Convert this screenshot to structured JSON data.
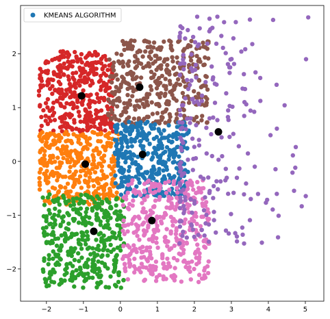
{
  "chart_data": {
    "type": "scatter",
    "title": "",
    "xlabel": "",
    "ylabel": "",
    "xlim": [
      -2.7,
      5.5
    ],
    "ylim": [
      -2.6,
      2.9
    ],
    "xticks": [
      -2,
      -1,
      0,
      1,
      2,
      3,
      4,
      5
    ],
    "yticks": [
      -2,
      -1,
      0,
      1,
      2
    ],
    "grid": false,
    "legend": {
      "placement": "top-left",
      "label": "KMEANS ALGORITHM",
      "color": "#1f77b4"
    },
    "clusters": [
      {
        "color": "#d62728",
        "centroid": [
          -1.05,
          1.22
        ],
        "x_range": [
          -2.2,
          -0.2
        ],
        "y_range": [
          0.55,
          2.05
        ]
      },
      {
        "color": "#8c564b",
        "centroid": [
          0.52,
          1.38
        ],
        "x_range": [
          -0.35,
          2.4
        ],
        "y_range": [
          0.7,
          2.25
        ]
      },
      {
        "color": "#ff7f0e",
        "centroid": [
          -0.95,
          -0.05
        ],
        "x_range": [
          -2.2,
          -0.05
        ],
        "y_range": [
          -0.8,
          0.55
        ]
      },
      {
        "color": "#1f77b4",
        "centroid": [
          0.6,
          0.13
        ],
        "x_range": [
          -0.15,
          1.85
        ],
        "y_range": [
          -0.65,
          0.75
        ]
      },
      {
        "color": "#2ca02c",
        "centroid": [
          -0.72,
          -1.3
        ],
        "x_range": [
          -2.1,
          0.1
        ],
        "y_range": [
          -2.35,
          -0.6
        ]
      },
      {
        "color": "#e377c2",
        "centroid": [
          0.85,
          -1.1
        ],
        "x_range": [
          0.05,
          2.4
        ],
        "y_range": [
          -2.25,
          -0.35
        ]
      },
      {
        "color": "#9467bd",
        "centroid": [
          2.65,
          0.55
        ],
        "x_range": [
          1.6,
          5.1
        ],
        "y_range": [
          -1.6,
          2.7
        ]
      }
    ],
    "centroid_color": "#000000"
  }
}
